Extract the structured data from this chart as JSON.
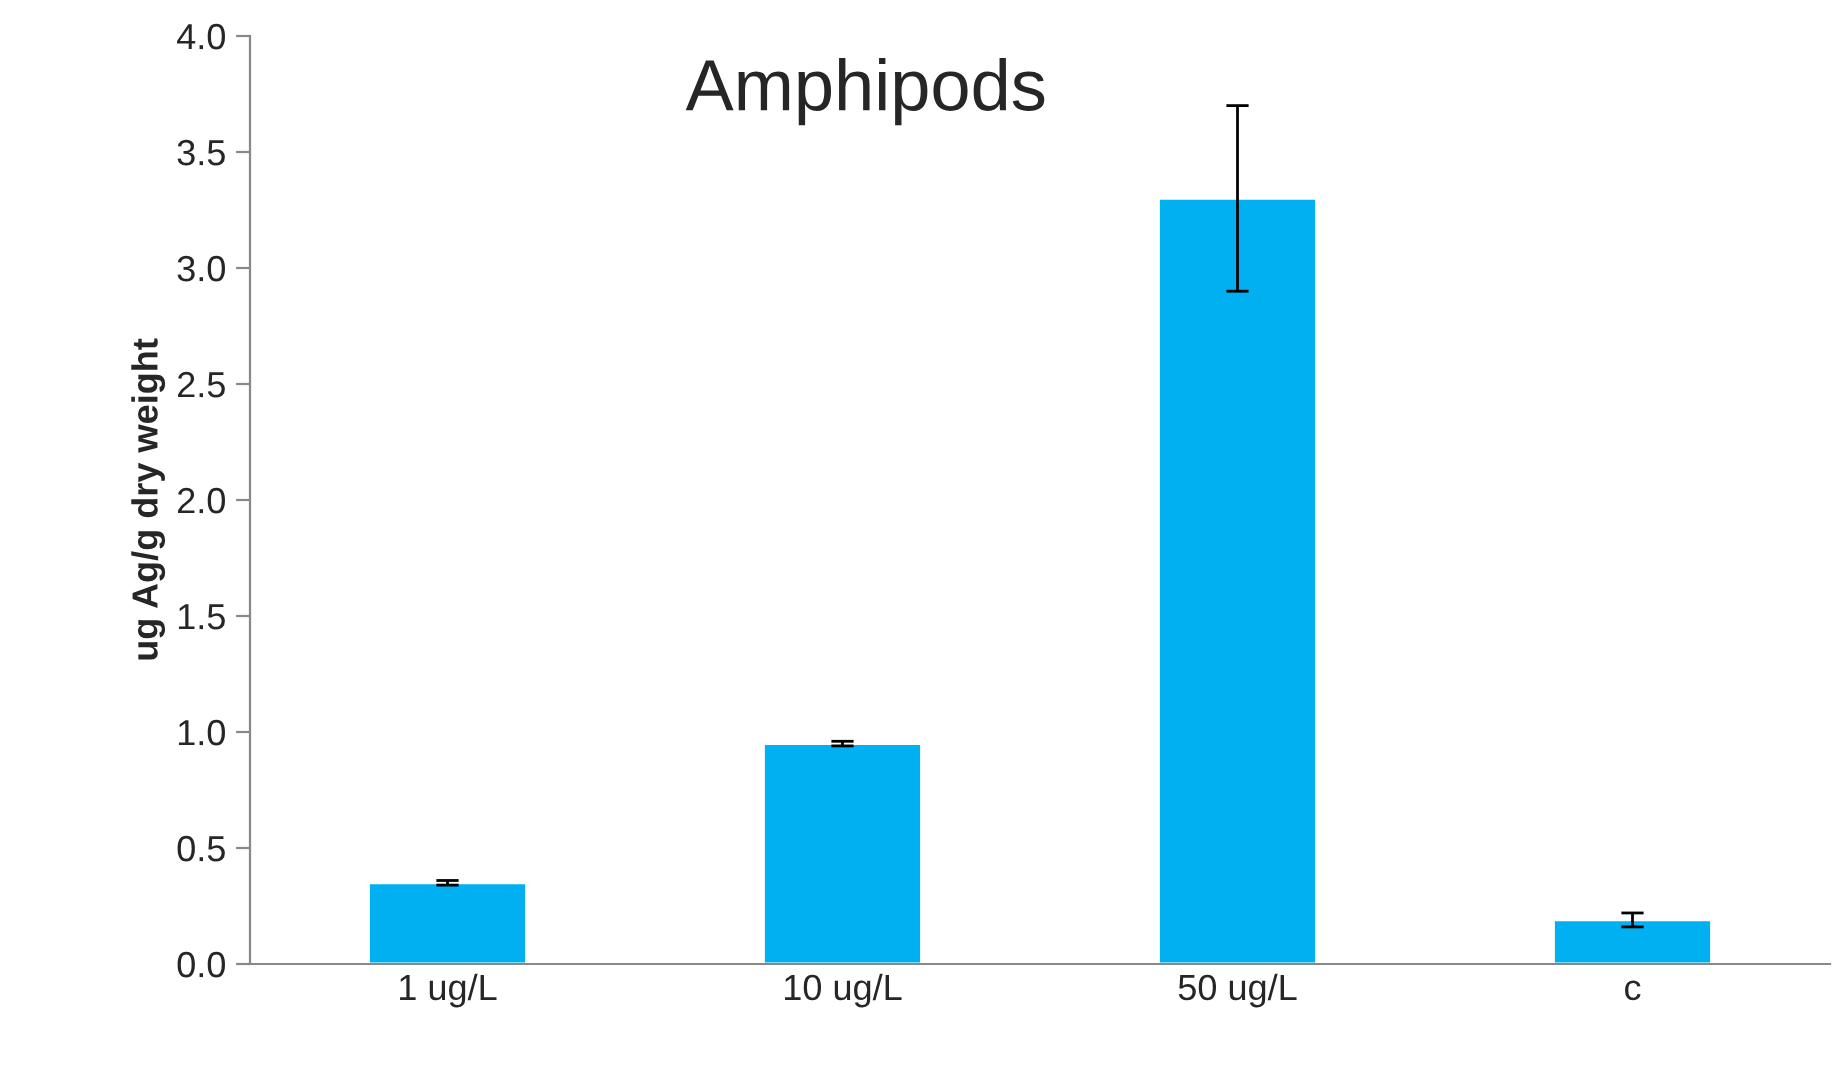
{
  "chart_data": {
    "type": "bar",
    "title": "Amphipods",
    "ylabel": "ug Ag/g dry weight",
    "categories": [
      "1 ug/L",
      "10 ug/L",
      "50 ug/L",
      "c"
    ],
    "values": [
      0.35,
      0.95,
      3.3,
      0.19
    ],
    "errors": [
      0.01,
      0.01,
      0.4,
      0.03
    ],
    "color": "#00b0f0",
    "ylim": [
      0,
      4
    ],
    "yticks": [
      {
        "value": 0,
        "label": "0.0"
      },
      {
        "value": 0.5,
        "label": "0.5"
      },
      {
        "value": 1,
        "label": "1.0"
      },
      {
        "value": 1.5,
        "label": "1.5"
      },
      {
        "value": 2,
        "label": "2.0"
      },
      {
        "value": 2.5,
        "label": "2.5"
      },
      {
        "value": 3,
        "label": "3.0"
      },
      {
        "value": 3.5,
        "label": "3.5"
      },
      {
        "value": 4,
        "label": "4.0"
      }
    ],
    "grid": false
  }
}
